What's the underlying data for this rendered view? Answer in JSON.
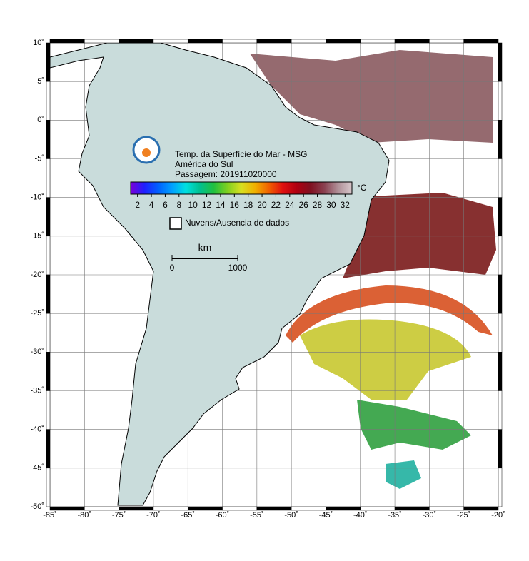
{
  "map": {
    "title_lines": [
      "Temp. da Superfície do Mar - MSG",
      "América do Sul",
      "Passagem: 201911020000"
    ],
    "xlim": [
      -85,
      -20
    ],
    "ylim": [
      -50,
      10
    ],
    "xticks": [
      {
        "value": -85,
        "label": "-85˚"
      },
      {
        "value": -80,
        "label": "-80˚"
      },
      {
        "value": -75,
        "label": "-75˚"
      },
      {
        "value": -70,
        "label": "-70˚"
      },
      {
        "value": -65,
        "label": "-65˚"
      },
      {
        "value": -60,
        "label": "-60˚"
      },
      {
        "value": -55,
        "label": "-55˚"
      },
      {
        "value": -50,
        "label": "-50˚"
      },
      {
        "value": -45,
        "label": "-45˚"
      },
      {
        "value": -40,
        "label": "-40˚"
      },
      {
        "value": -35,
        "label": "-35˚"
      },
      {
        "value": -30,
        "label": "-30˚"
      },
      {
        "value": -25,
        "label": "-25˚"
      },
      {
        "value": -20,
        "label": "-20˚"
      }
    ],
    "yticks": [
      {
        "value": 10,
        "label": "10˚"
      },
      {
        "value": 5,
        "label": "5˚"
      },
      {
        "value": 0,
        "label": "0˚"
      },
      {
        "value": -5,
        "label": "-5˚"
      },
      {
        "value": -10,
        "label": "-10˚"
      },
      {
        "value": -15,
        "label": "-15˚"
      },
      {
        "value": -20,
        "label": "-20˚"
      },
      {
        "value": -25,
        "label": "-25˚"
      },
      {
        "value": -30,
        "label": "-30˚"
      },
      {
        "value": -35,
        "label": "-35˚"
      },
      {
        "value": -40,
        "label": "-40˚"
      },
      {
        "value": -45,
        "label": "-45˚"
      },
      {
        "value": -50,
        "label": "-50˚"
      }
    ],
    "grid": true,
    "colorbar": {
      "unit": "°C",
      "lim": [
        1,
        33
      ],
      "ticks": [
        2,
        4,
        6,
        8,
        10,
        12,
        14,
        16,
        18,
        20,
        22,
        24,
        26,
        28,
        30,
        32
      ],
      "colors": [
        "#7a00d8",
        "#2020ff",
        "#0060ff",
        "#00a0ff",
        "#00e0e0",
        "#00c090",
        "#20c040",
        "#80d020",
        "#d8e020",
        "#f0b000",
        "#f06000",
        "#e01010",
        "#b00010",
        "#801020",
        "#8a4050",
        "#b09098",
        "#d8c8cc"
      ]
    },
    "legend": "Nuvens/Ausencia de dados",
    "scale": {
      "unit": "km",
      "lim": [
        0,
        1000
      ],
      "ticks": [
        0,
        1000
      ]
    }
  }
}
